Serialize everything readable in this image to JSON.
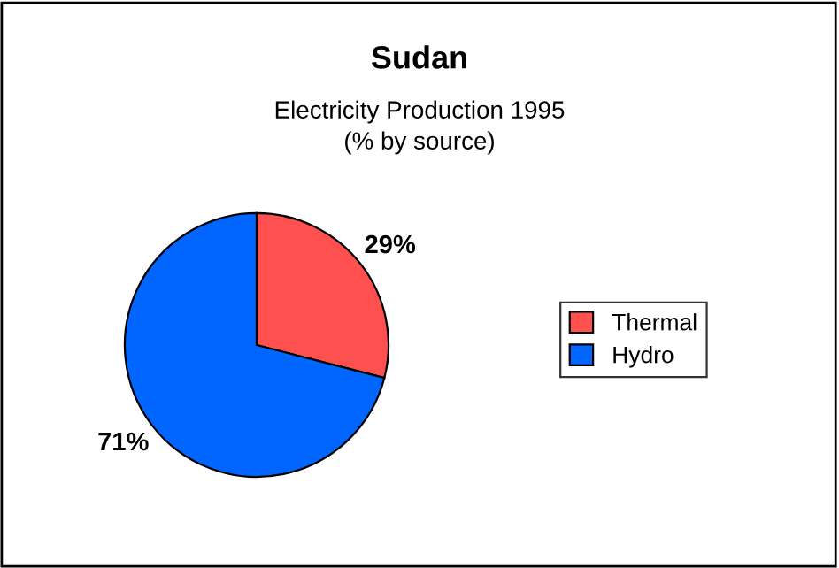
{
  "chart_data": {
    "type": "pie",
    "title": "Sudan",
    "subtitle": "Electricity Production 1995\n(% by source)",
    "categories": [
      "Thermal",
      "Hydro"
    ],
    "values": [
      29,
      71
    ],
    "colors": [
      "#ff5050",
      "#0066ff"
    ],
    "value_labels": [
      "29%",
      "71%"
    ],
    "legend": "right"
  }
}
